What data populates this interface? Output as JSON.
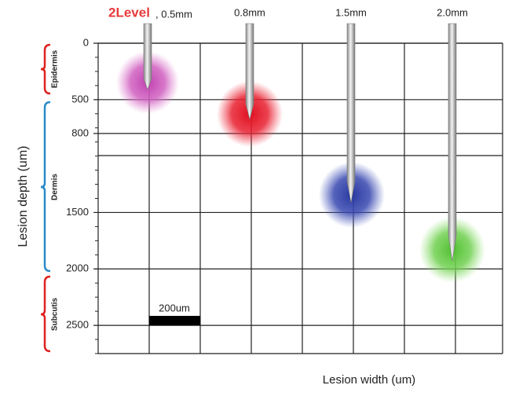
{
  "header": {
    "brand": "2Level",
    "needles": [
      ", 0.5mm",
      "0.8mm",
      "1.5mm",
      "2.0mm"
    ]
  },
  "y_axis": {
    "label": "Lesion depth (um)",
    "range": [
      0,
      2750
    ],
    "ticks": [
      0,
      500,
      800,
      1500,
      2000,
      2500
    ]
  },
  "x_axis": {
    "label": "Lesion width (um)"
  },
  "layers": [
    "Epidermis",
    "Dermis",
    "Subcutis"
  ],
  "scale_bar": "200um"
}
